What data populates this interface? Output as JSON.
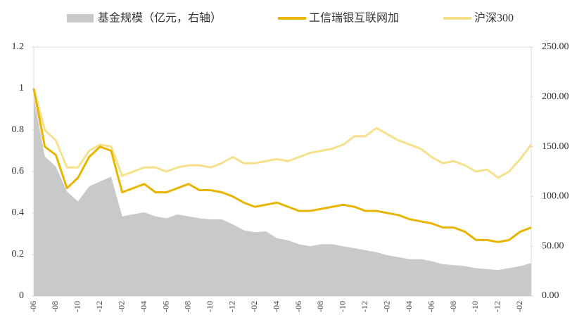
{
  "chart_data": {
    "type": "area-line",
    "categories": [
      "-06",
      null,
      "-08",
      null,
      "-10",
      null,
      "-12",
      null,
      "-02",
      null,
      "-04",
      null,
      "-06",
      null,
      "-08",
      null,
      "-10",
      null,
      "-12",
      null,
      "-02",
      null,
      "-04",
      null,
      "-06",
      null,
      "-08",
      null,
      "-10",
      null,
      "-12",
      null,
      "-02",
      null,
      "-04",
      null,
      "-06",
      null,
      "-08",
      null,
      "-10",
      null,
      "-12",
      null,
      "-02",
      null
    ],
    "series": [
      {
        "name": "基金规模（亿元，右轴）",
        "color": "#c9c9c9",
        "kind": "area",
        "axis": "y2",
        "values": [
          200,
          140,
          130,
          105,
          95,
          110,
          115,
          120,
          80,
          82,
          84,
          80,
          78,
          82,
          80,
          78,
          77,
          77,
          72,
          66,
          64,
          65,
          58,
          56,
          52,
          50,
          52,
          52,
          50,
          48,
          46,
          44,
          41,
          39,
          37,
          37,
          35,
          32,
          31,
          30,
          28,
          27,
          26,
          28,
          30,
          33
        ]
      },
      {
        "name": "工信瑞银互联网加",
        "color": "#e8b400",
        "kind": "line",
        "values": [
          1.0,
          0.72,
          0.68,
          0.52,
          0.57,
          0.67,
          0.72,
          0.7,
          0.5,
          0.52,
          0.54,
          0.5,
          0.5,
          0.52,
          0.54,
          0.51,
          0.51,
          0.5,
          0.48,
          0.45,
          0.43,
          0.44,
          0.45,
          0.43,
          0.41,
          0.41,
          0.42,
          0.43,
          0.44,
          0.43,
          0.41,
          0.41,
          0.4,
          0.39,
          0.37,
          0.36,
          0.35,
          0.33,
          0.33,
          0.31,
          0.27,
          0.27,
          0.26,
          0.27,
          0.31,
          0.33
        ]
      },
      {
        "name": "沪深300",
        "color": "#f7e08c",
        "kind": "line",
        "values": [
          1.0,
          0.8,
          0.75,
          0.62,
          0.62,
          0.7,
          0.73,
          0.72,
          0.58,
          0.6,
          0.62,
          0.62,
          0.6,
          0.62,
          0.63,
          0.63,
          0.62,
          0.64,
          0.67,
          0.64,
          0.64,
          0.65,
          0.66,
          0.65,
          0.67,
          0.69,
          0.7,
          0.71,
          0.73,
          0.77,
          0.77,
          0.81,
          0.78,
          0.75,
          0.73,
          0.71,
          0.67,
          0.64,
          0.65,
          0.63,
          0.6,
          0.61,
          0.57,
          0.6,
          0.66,
          0.73
        ]
      }
    ],
    "ylim": [
      0,
      1.2
    ],
    "yticks": [
      0,
      0.2,
      0.4,
      0.6,
      0.8,
      1,
      1.2
    ],
    "y2lim": [
      0,
      250
    ],
    "y2ticks": [
      {
        "value": 0,
        "label": "0.00"
      },
      {
        "value": 50,
        "label": "50.00"
      },
      {
        "value": 100,
        "label": "100.00"
      },
      {
        "value": 150,
        "label": "150.00"
      },
      {
        "value": 200,
        "label": "200.00"
      },
      {
        "value": 250,
        "label": "250.00"
      }
    ],
    "legend": "top"
  }
}
